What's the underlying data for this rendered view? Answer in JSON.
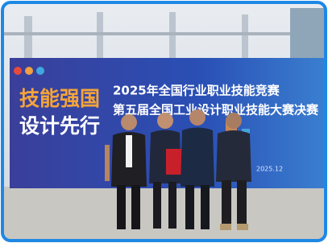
{
  "backdrop": {
    "slogan": [
      "技能强国",
      "设计先行"
    ],
    "title": "2025年全国行业职业技能竞赛",
    "subtitle": "第五届全国工业设计职业技能大赛决赛",
    "date": "2025.12"
  }
}
